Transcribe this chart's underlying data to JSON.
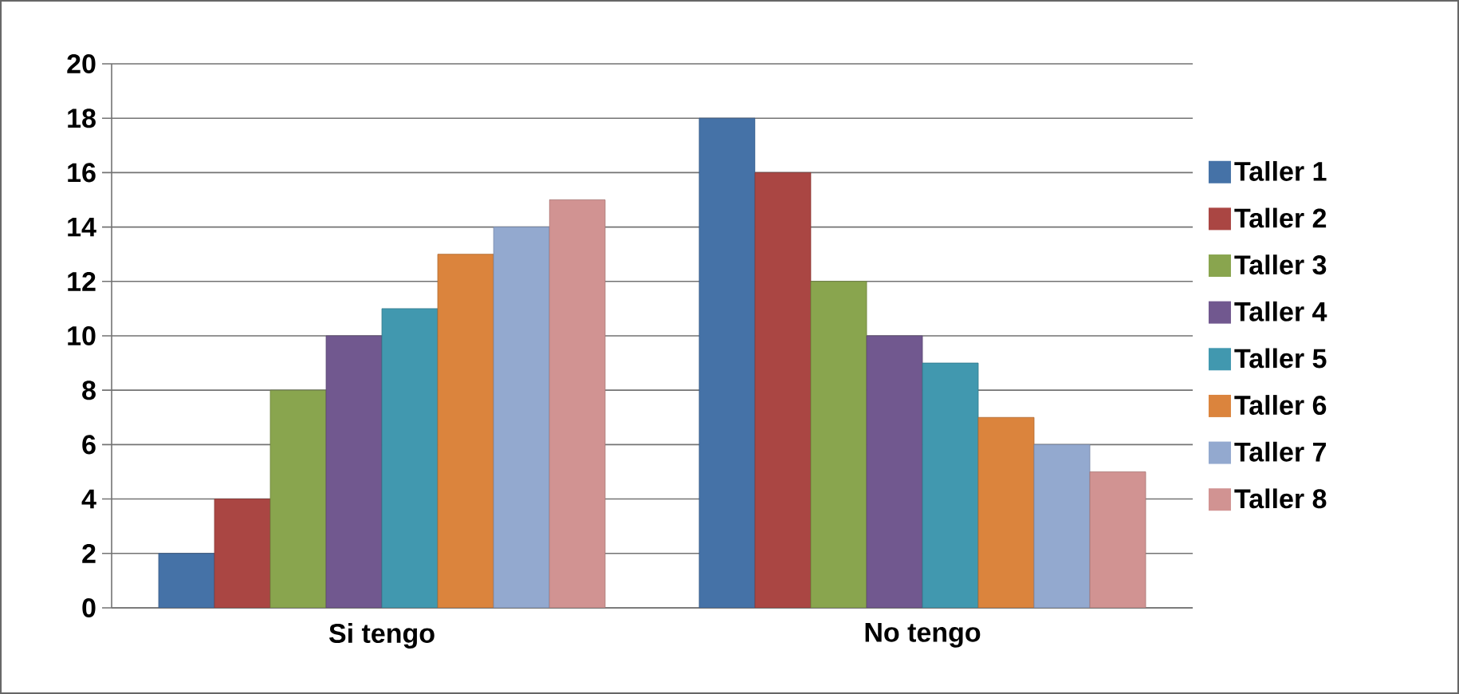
{
  "chart_data": {
    "type": "bar",
    "categories": [
      "Si tengo",
      "No tengo"
    ],
    "series": [
      {
        "name": "Taller 1",
        "color": "#4572a7",
        "values": [
          2,
          18
        ]
      },
      {
        "name": "Taller 2",
        "color": "#aa4643",
        "values": [
          4,
          16
        ]
      },
      {
        "name": "Taller 3",
        "color": "#89a54e",
        "values": [
          8,
          12
        ]
      },
      {
        "name": "Taller 4",
        "color": "#71588f",
        "values": [
          10,
          10
        ]
      },
      {
        "name": "Taller 5",
        "color": "#4198af",
        "values": [
          11,
          9
        ]
      },
      {
        "name": "Taller 6",
        "color": "#db843d",
        "values": [
          13,
          7
        ]
      },
      {
        "name": "Taller 7",
        "color": "#93a9cf",
        "values": [
          14,
          6
        ]
      },
      {
        "name": "Taller 8",
        "color": "#d19392",
        "values": [
          15,
          5
        ]
      }
    ],
    "ylim": [
      0,
      20
    ],
    "yticks": [
      0,
      2,
      4,
      6,
      8,
      10,
      12,
      14,
      16,
      18,
      20
    ],
    "grid": "y",
    "legend": "right"
  }
}
